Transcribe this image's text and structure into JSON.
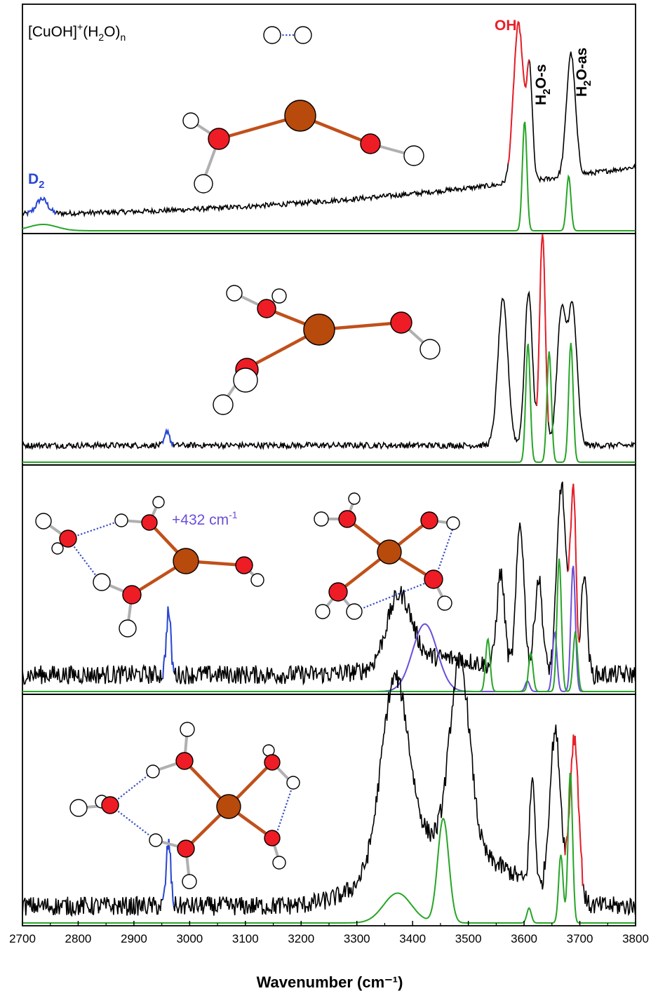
{
  "colors": {
    "experiment": "#000000",
    "OH_band": "#e8202a",
    "D2_band": "#2a48d6",
    "calc_main": "#27a527",
    "calc_isomer": "#6a4fd8",
    "cu_atom": "#b84a0c",
    "o_atom": "#ee1c24",
    "h_atom": "#ffffff"
  },
  "labels": {
    "formula_main": "[CuOH]",
    "formula_sup": "+",
    "formula_paren": "(H",
    "formula_sub2": "2",
    "formula_o": "O)",
    "formula_subn": "n",
    "d2_main": "D",
    "d2_sub": "2",
    "oh": "OH",
    "h2os_h": "H",
    "h2os_sub": "2",
    "h2os_rest": "O-s",
    "h2oas_h": "H",
    "h2oas_sub": "2",
    "h2oas_rest": "O-as",
    "isomer_energy_main": "+432 cm",
    "isomer_energy_sup": "-1"
  },
  "chart_data": {
    "type": "line",
    "xlabel": "Wavenumber (cm⁻¹)",
    "xlim": [
      2700,
      3800
    ],
    "xticks": [
      2700,
      2800,
      2900,
      3000,
      3100,
      3200,
      3300,
      3400,
      3500,
      3600,
      3700,
      3800
    ],
    "panels": [
      {
        "n": 1,
        "experiment_peaks": [
          {
            "x": 2735,
            "h": 0.07,
            "w": 10,
            "band": "D2"
          },
          {
            "x": 3590,
            "h": 0.75,
            "w": 9,
            "band": "OH"
          },
          {
            "x": 3610,
            "h": 0.5,
            "w": 5,
            "band": "H2O-s"
          },
          {
            "x": 3684,
            "h": 0.58,
            "w": 8,
            "band": "H2O-as"
          }
        ],
        "calculated": [
          {
            "x": 2737,
            "h": 0.03
          },
          {
            "x": 3601,
            "h": 0.52
          },
          {
            "x": 3680,
            "h": 0.26
          }
        ]
      },
      {
        "n": 2,
        "experiment_peaks": [
          {
            "x": 2960,
            "h": 0.07,
            "w": 4,
            "band": "D2"
          },
          {
            "x": 3562,
            "h": 0.68,
            "w": 9
          },
          {
            "x": 3608,
            "h": 0.72,
            "w": 7
          },
          {
            "x": 3633,
            "h": 1.0,
            "w": 5,
            "band": "OH"
          },
          {
            "x": 3667,
            "h": 0.62,
            "w": 8
          },
          {
            "x": 3687,
            "h": 0.64,
            "w": 8
          }
        ],
        "calculated": [
          {
            "x": 3607,
            "h": 0.56
          },
          {
            "x": 3645,
            "h": 0.52
          },
          {
            "x": 3684,
            "h": 0.56
          }
        ]
      },
      {
        "n": 3,
        "experiment_peaks": [
          {
            "x": 2962,
            "h": 0.3,
            "w": 4,
            "band": "D2"
          },
          {
            "x": 3376,
            "h": 0.33,
            "w": 22
          },
          {
            "x": 3558,
            "h": 0.45,
            "w": 7
          },
          {
            "x": 3593,
            "h": 0.7,
            "w": 7
          },
          {
            "x": 3626,
            "h": 0.45,
            "w": 7
          },
          {
            "x": 3667,
            "h": 0.9,
            "w": 8
          },
          {
            "x": 3688,
            "h": 0.88,
            "w": 5,
            "band": "OH"
          },
          {
            "x": 3708,
            "h": 0.5,
            "w": 5
          }
        ],
        "calculated": [
          {
            "x": 3535,
            "h": 0.25
          },
          {
            "x": 3612,
            "h": 0.18
          },
          {
            "x": 3663,
            "h": 0.63
          },
          {
            "x": 3692,
            "h": 0.28
          }
        ],
        "calculated_isomer": [
          {
            "x": 3422,
            "h": 0.32
          },
          {
            "x": 3606,
            "h": 0.05
          },
          {
            "x": 3655,
            "h": 0.28
          },
          {
            "x": 3688,
            "h": 0.6
          }
        ]
      },
      {
        "n": 4,
        "experiment_peaks": [
          {
            "x": 2962,
            "h": 0.3,
            "w": 4,
            "band": "D2"
          },
          {
            "x": 3368,
            "h": 0.83,
            "w": 24
          },
          {
            "x": 3485,
            "h": 0.88,
            "w": 18
          },
          {
            "x": 3615,
            "h": 0.5,
            "w": 5
          },
          {
            "x": 3656,
            "h": 0.78,
            "w": 10
          },
          {
            "x": 3690,
            "h": 0.78,
            "w": 8,
            "band": "OH"
          }
        ],
        "calculated": [
          {
            "x": 3373,
            "h": 0.14
          },
          {
            "x": 3455,
            "h": 0.49
          },
          {
            "x": 3609,
            "h": 0.07
          },
          {
            "x": 3666,
            "h": 0.32
          },
          {
            "x": 3683,
            "h": 0.71
          }
        ]
      }
    ]
  }
}
